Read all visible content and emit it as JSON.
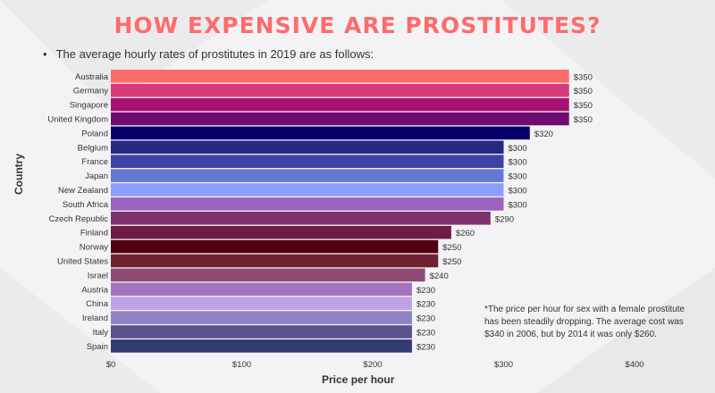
{
  "page": {
    "title": "HOW EXPENSIVE ARE PROSTITUTES?",
    "subtitle": "The average hourly rates of prostitutes in 2019 are as follows:",
    "note": "*The price per hour for sex with a female prostitute has been steadily dropping. The average cost was $340 in 2006, but by 2014 it was only $260.",
    "title_color": "#ff6b6b"
  },
  "chart_data": {
    "type": "bar",
    "orientation": "horizontal",
    "xlabel": "Price per hour",
    "ylabel": "Country",
    "xlim": [
      0,
      400
    ],
    "x_ticks": [
      "$0",
      "$100",
      "$200",
      "$300",
      "$400"
    ],
    "x_tick_values": [
      0,
      100,
      200,
      300,
      400
    ],
    "categories": [
      "Australia",
      "Germany",
      "Singapore",
      "United Kingdom",
      "Poland",
      "Belgium",
      "France",
      "Japan",
      "New Zealand",
      "South Africa",
      "Czech Republic",
      "Finland",
      "Norway",
      "United States",
      "Israel",
      "Austria",
      "China",
      "Ireland",
      "Italy",
      "Spain"
    ],
    "values": [
      350,
      350,
      350,
      350,
      320,
      300,
      300,
      300,
      300,
      300,
      290,
      260,
      250,
      250,
      240,
      230,
      230,
      230,
      230,
      230
    ],
    "value_labels": [
      "$350",
      "$350",
      "$350",
      "$350",
      "$320",
      "$300",
      "$300",
      "$300",
      "$300",
      "$300",
      "$290",
      "$260",
      "$250",
      "$250",
      "$240",
      "$230",
      "$230",
      "$230",
      "$230",
      "$230"
    ],
    "colors": [
      "#ff6b6b",
      "#d63a79",
      "#a6126f",
      "#6e0c72",
      "#07006b",
      "#252982",
      "#3e42a6",
      "#6478d6",
      "#8c9cff",
      "#9b63be",
      "#7e326e",
      "#6e1c46",
      "#4f0013",
      "#6e222f",
      "#8e4a72",
      "#a374bd",
      "#bea2e8",
      "#8f80c8",
      "#5b528f",
      "#333b73"
    ],
    "grid": false,
    "legend": "none"
  }
}
